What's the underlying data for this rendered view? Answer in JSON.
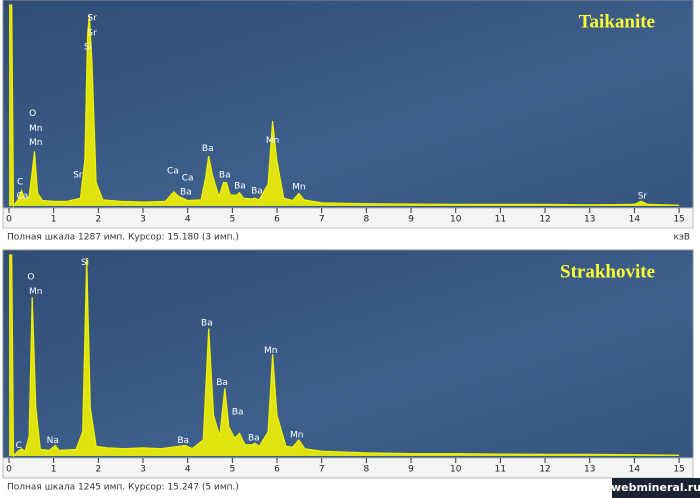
{
  "chart_data": [
    {
      "type": "area",
      "title": "Taikanite",
      "color": "#f2f200",
      "x": [
        0,
        0.06,
        0.1,
        0.2,
        0.28,
        0.36,
        0.45,
        0.52,
        0.57,
        0.64,
        0.75,
        1.0,
        1.3,
        1.6,
        1.7,
        1.76,
        1.8,
        1.86,
        1.95,
        2.1,
        2.5,
        3.0,
        3.5,
        3.69,
        3.8,
        4.0,
        4.3,
        4.4,
        4.47,
        4.55,
        4.7,
        4.8,
        4.87,
        4.95,
        5.1,
        5.16,
        5.25,
        5.45,
        5.5,
        5.6,
        5.8,
        5.9,
        5.99,
        6.15,
        6.35,
        6.49,
        6.6,
        7,
        8,
        9,
        10,
        11,
        12,
        13,
        14,
        14.15,
        14.3,
        15
      ],
      "values": [
        1287,
        1287,
        0,
        40,
        100,
        40,
        60,
        220,
        350,
        80,
        35,
        30,
        30,
        50,
        300,
        1100,
        1220,
        900,
        150,
        40,
        30,
        25,
        30,
        90,
        60,
        35,
        40,
        180,
        320,
        200,
        60,
        150,
        150,
        70,
        70,
        85,
        50,
        45,
        50,
        40,
        140,
        545,
        300,
        50,
        35,
        80,
        40,
        20,
        15,
        12,
        10,
        10,
        10,
        8,
        10,
        30,
        10,
        5
      ],
      "xlim": [
        0,
        15.2
      ],
      "ylim": [
        0,
        1287
      ],
      "xticks": [
        0,
        1,
        2,
        3,
        4,
        5,
        6,
        7,
        8,
        9,
        10,
        11,
        12,
        13,
        14,
        15
      ],
      "annotations": [
        {
          "text": "C",
          "x": 0.25,
          "y": 154
        },
        {
          "text": "Ca",
          "x": 0.3,
          "y": 64
        },
        {
          "text": "O",
          "x": 0.53,
          "y": 592
        },
        {
          "text": "Mn",
          "x": 0.6,
          "y": 495
        },
        {
          "text": "Mn",
          "x": 0.6,
          "y": 405
        },
        {
          "text": "Sr",
          "x": 1.54,
          "y": 200
        },
        {
          "text": "Sr",
          "x": 1.86,
          "y": 1203
        },
        {
          "text": "Sr",
          "x": 1.86,
          "y": 1107
        },
        {
          "text": "Si",
          "x": 1.77,
          "y": 1017
        },
        {
          "text": "Ca",
          "x": 3.67,
          "y": 225
        },
        {
          "text": "Ca",
          "x": 4.0,
          "y": 180
        },
        {
          "text": "Ba",
          "x": 3.96,
          "y": 90
        },
        {
          "text": "Ba",
          "x": 4.45,
          "y": 367
        },
        {
          "text": "Ba",
          "x": 4.83,
          "y": 200
        },
        {
          "text": "Ba",
          "x": 5.17,
          "y": 129
        },
        {
          "text": "Ba",
          "x": 5.55,
          "y": 97
        },
        {
          "text": "Mn",
          "x": 5.9,
          "y": 418
        },
        {
          "text": "Mn",
          "x": 6.49,
          "y": 122
        },
        {
          "text": "Sr",
          "x": 14.18,
          "y": 64
        }
      ],
      "status": "Полная шкала 1287 имп. Курсор: 15.180 (3 имп.)",
      "x_unit": "кэВ"
    },
    {
      "type": "area",
      "title": "Strakhovite",
      "color": "#f2f200",
      "x": [
        0,
        0.06,
        0.1,
        0.2,
        0.28,
        0.36,
        0.45,
        0.52,
        0.6,
        0.7,
        0.9,
        1.04,
        1.12,
        1.5,
        1.65,
        1.74,
        1.82,
        1.95,
        2.2,
        2.6,
        3.0,
        3.4,
        3.95,
        4.1,
        4.35,
        4.47,
        4.58,
        4.72,
        4.83,
        4.92,
        5.05,
        5.16,
        5.28,
        5.45,
        5.5,
        5.6,
        5.8,
        5.9,
        6.0,
        6.2,
        6.35,
        6.49,
        6.62,
        7,
        8,
        9,
        10,
        11,
        12,
        13,
        14,
        15
      ],
      "values": [
        1245,
        1245,
        0,
        30,
        45,
        30,
        120,
        985,
        300,
        40,
        35,
        65,
        35,
        40,
        150,
        1225,
        300,
        60,
        50,
        45,
        50,
        45,
        65,
        45,
        100,
        790,
        250,
        120,
        420,
        180,
        110,
        140,
        70,
        70,
        80,
        60,
        150,
        630,
        250,
        60,
        55,
        100,
        45,
        30,
        20,
        15,
        15,
        12,
        10,
        10,
        8,
        5
      ],
      "xlim": [
        0,
        15.2
      ],
      "ylim": [
        0,
        1245
      ],
      "xticks": [
        0,
        1,
        2,
        3,
        4,
        5,
        6,
        7,
        8,
        9,
        10,
        11,
        12,
        13,
        14,
        15
      ],
      "annotations": [
        {
          "text": "C",
          "x": 0.22,
          "y": 65
        },
        {
          "text": "O",
          "x": 0.49,
          "y": 1109
        },
        {
          "text": "Mn",
          "x": 0.6,
          "y": 1018
        },
        {
          "text": "Na",
          "x": 0.98,
          "y": 97
        },
        {
          "text": "Si",
          "x": 1.7,
          "y": 1200
        },
        {
          "text": "Ba",
          "x": 3.9,
          "y": 97
        },
        {
          "text": "Ba",
          "x": 4.43,
          "y": 823
        },
        {
          "text": "Ba",
          "x": 4.77,
          "y": 454
        },
        {
          "text": "Ba",
          "x": 5.12,
          "y": 272
        },
        {
          "text": "Ba",
          "x": 5.48,
          "y": 110
        },
        {
          "text": "Mn",
          "x": 5.86,
          "y": 655
        },
        {
          "text": "Mn",
          "x": 6.44,
          "y": 130
        }
      ],
      "status": "Полная шкала 1245 имп. Курсор: 15.247 (5 имп.)",
      "x_unit": "кэВ"
    }
  ],
  "watermark": "webmineral.ru"
}
